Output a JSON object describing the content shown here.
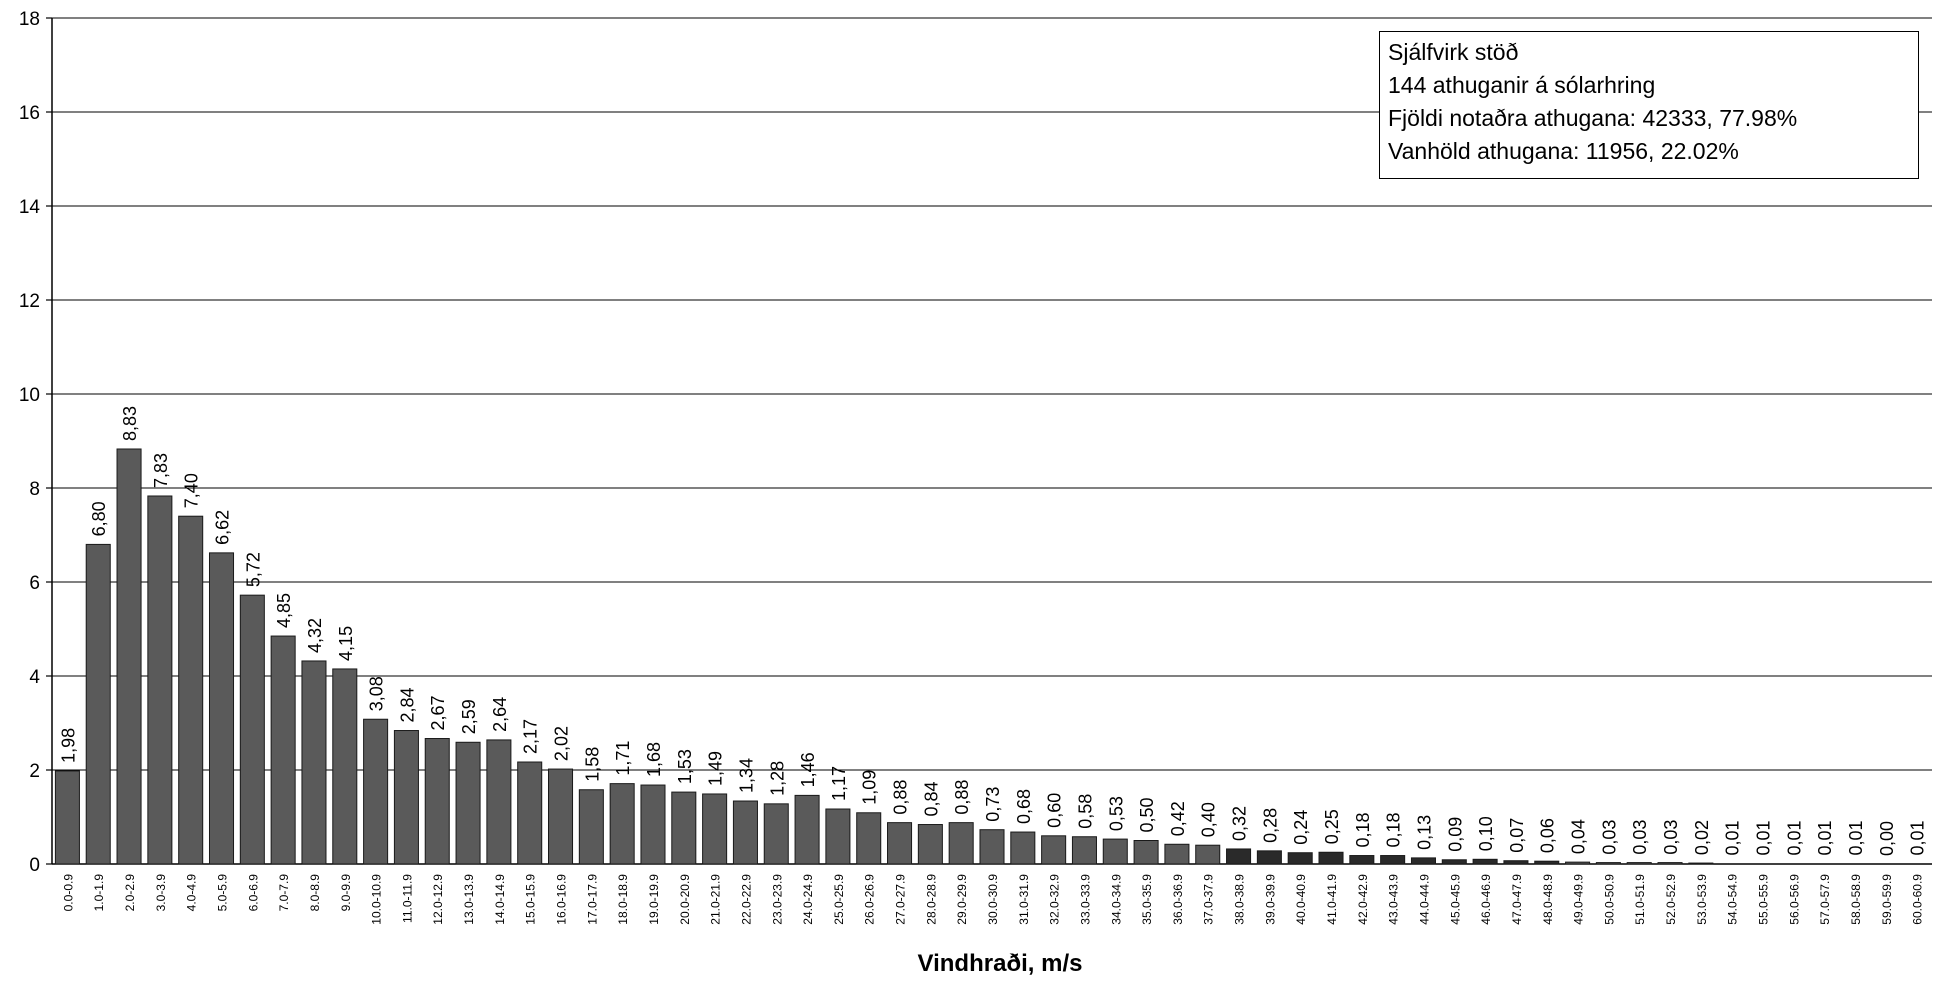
{
  "chart_data": {
    "type": "bar",
    "xlabel": "Vindhraði, m/s",
    "ylabel": "",
    "ylim": [
      0,
      18
    ],
    "yticks": [
      "0",
      "2",
      "4",
      "6",
      "8",
      "10",
      "12",
      "14",
      "16",
      "18"
    ],
    "grid": true,
    "categories": [
      "0.0-0.9",
      "1.0-1.9",
      "2.0-2.9",
      "3.0-3.9",
      "4.0-4.9",
      "5.0-5.9",
      "6.0-6.9",
      "7.0-7.9",
      "8.0-8.9",
      "9.0-9.9",
      "10.0-10.9",
      "11.0-11.9",
      "12.0-12.9",
      "13.0-13.9",
      "14.0-14.9",
      "15.0-15.9",
      "16.0-16.9",
      "17.0-17.9",
      "18.0-18.9",
      "19.0-19.9",
      "20.0-20.9",
      "21.0-21.9",
      "22.0-22.9",
      "23.0-23.9",
      "24.0-24.9",
      "25.0-25.9",
      "26.0-26.9",
      "27.0-27.9",
      "28.0-28.9",
      "29.0-29.9",
      "30.0-30.9",
      "31.0-31.9",
      "32.0-32.9",
      "33.0-33.9",
      "34.0-34.9",
      "35.0-35.9",
      "36.0-36.9",
      "37.0-37.9",
      "38.0-38.9",
      "39.0-39.9",
      "40.0-40.9",
      "41.0-41.9",
      "42.0-42.9",
      "43.0-43.9",
      "44.0-44.9",
      "45.0-45.9",
      "46.0-46.9",
      "47.0-47.9",
      "48.0-48.9",
      "49.0-49.9",
      "50.0-50.9",
      "51.0-51.9",
      "52.0-52.9",
      "53.0-53.9",
      "54.0-54.9",
      "55.0-55.9",
      "56.0-56.9",
      "57.0-57.9",
      "58.0-58.9",
      "59.0-59.9",
      "60.0-60.9"
    ],
    "values": [
      1.98,
      6.8,
      8.83,
      7.83,
      7.4,
      6.62,
      5.72,
      4.85,
      4.32,
      4.15,
      3.08,
      2.84,
      2.67,
      2.59,
      2.64,
      2.17,
      2.02,
      1.58,
      1.71,
      1.68,
      1.53,
      1.49,
      1.34,
      1.28,
      1.46,
      1.17,
      1.09,
      0.88,
      0.84,
      0.88,
      0.73,
      0.68,
      0.6,
      0.58,
      0.53,
      0.5,
      0.42,
      0.4,
      0.32,
      0.28,
      0.24,
      0.25,
      0.18,
      0.18,
      0.13,
      0.09,
      0.1,
      0.07,
      0.06,
      0.04,
      0.03,
      0.03,
      0.03,
      0.02,
      0.01,
      0.01,
      0.01,
      0.01,
      0.01,
      0.0,
      0.01
    ],
    "data_labels": [
      "1,98",
      "6,80",
      "8,83",
      "7,83",
      "7,40",
      "6,62",
      "5,72",
      "4,85",
      "4,32",
      "4,15",
      "3,08",
      "2,84",
      "2,67",
      "2,59",
      "2,64",
      "2,17",
      "2,02",
      "1,58",
      "1,71",
      "1,68",
      "1,53",
      "1,49",
      "1,34",
      "1,28",
      "1,46",
      "1,17",
      "1,09",
      "0,88",
      "0,84",
      "0,88",
      "0,73",
      "0,68",
      "0,60",
      "0,58",
      "0,53",
      "0,50",
      "0,42",
      "0,40",
      "0,32",
      "0,28",
      "0,24",
      "0,25",
      "0,18",
      "0,18",
      "0,13",
      "0,09",
      "0,10",
      "0,07",
      "0,06",
      "0,04",
      "0,03",
      "0,03",
      "0,03",
      "0,02",
      "0,01",
      "0,01",
      "0,01",
      "0,01",
      "0,01",
      "0,00",
      "0,01"
    ],
    "colors": {
      "bar": "#5a5a5a",
      "bar_dark": "#2a2a2a",
      "grid": "#000000",
      "axis": "#000000"
    }
  },
  "legend": {
    "lines": [
      "Sjálfvirk stöð",
      "144 athuganir á sólarhring",
      "Fjöldi notaðra athugana: 42333, 77.98%",
      "Vanhöld athugana: 11956, 22.02%"
    ]
  }
}
